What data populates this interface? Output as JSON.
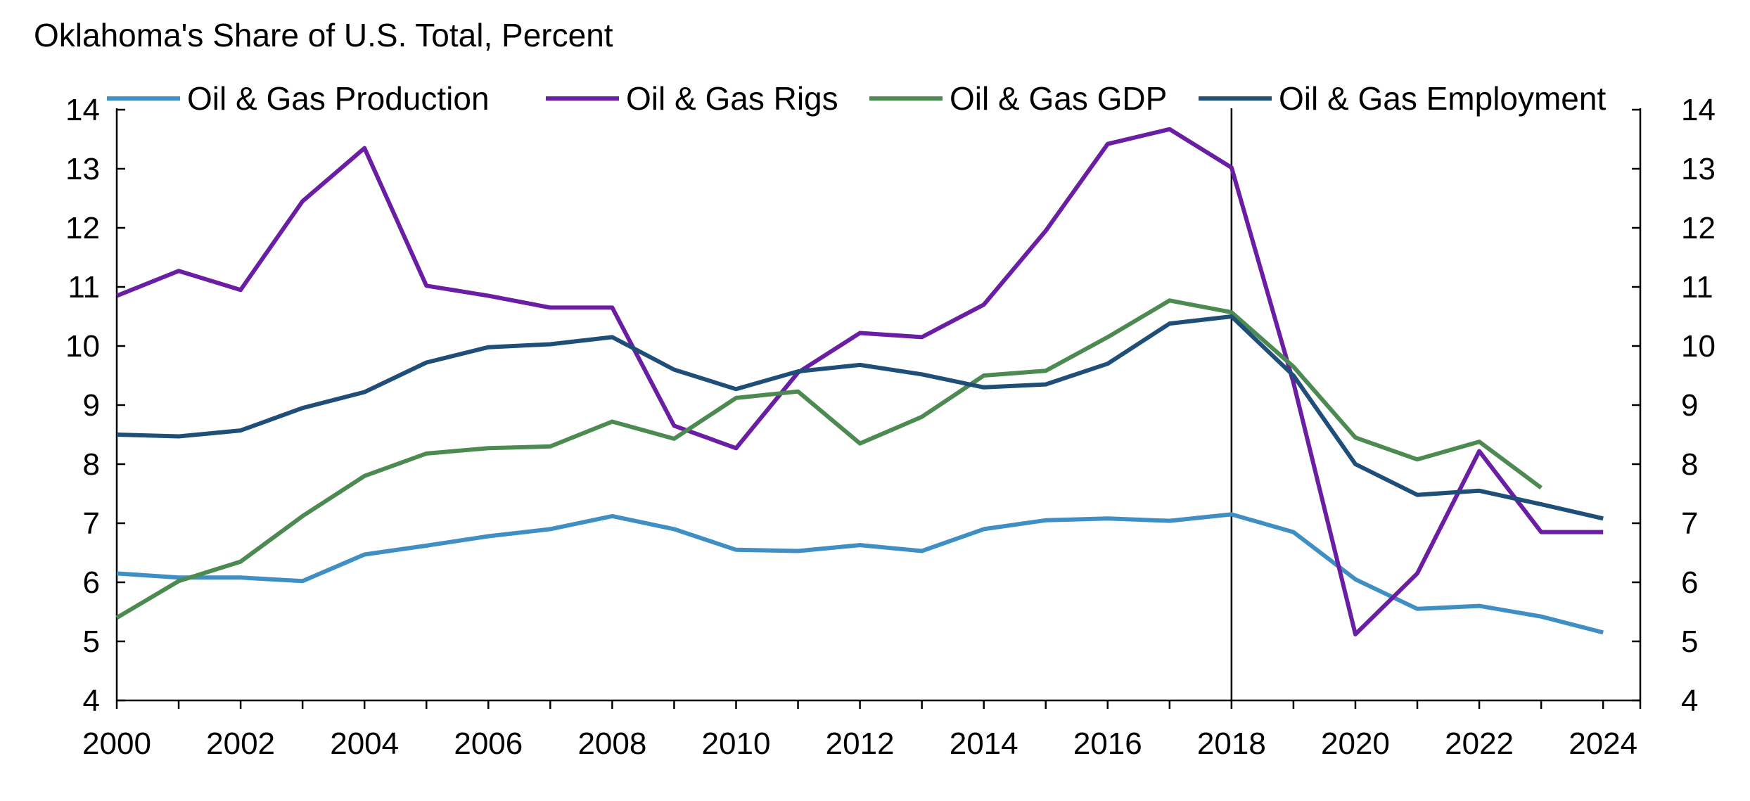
{
  "chart_data": {
    "type": "line",
    "title": "Oklahoma's Share of U.S. Total, Percent",
    "xlabel": "",
    "ylabel": "",
    "x": [
      2000,
      2001,
      2002,
      2003,
      2004,
      2005,
      2006,
      2007,
      2008,
      2009,
      2010,
      2011,
      2012,
      2013,
      2014,
      2015,
      2016,
      2017,
      2018,
      2019,
      2020,
      2021,
      2022,
      2023,
      2024
    ],
    "x_tick_labels": [
      "2000",
      "2002",
      "2004",
      "2006",
      "2008",
      "2010",
      "2012",
      "2014",
      "2016",
      "2018",
      "2020",
      "2022",
      "2024"
    ],
    "xlim": [
      2000,
      2024.6
    ],
    "ylim": [
      4,
      14
    ],
    "y_ticks": [
      4,
      5,
      6,
      7,
      8,
      9,
      10,
      11,
      12,
      13,
      14
    ],
    "y_tick_labels_left": [
      "4",
      "5",
      "6",
      "7",
      "8",
      "9",
      "10",
      "11",
      "12",
      "13",
      "14"
    ],
    "y_tick_labels_right": [
      "4",
      "5",
      "6",
      "7",
      "8",
      "9",
      "10",
      "11",
      "12",
      "13",
      "14"
    ],
    "grid": false,
    "legend_position": "top",
    "vertical_marker_x": 2018,
    "series": [
      {
        "name": "Oil & Gas Production",
        "color": "#3f8fc4",
        "values": [
          6.15,
          6.08,
          6.08,
          6.02,
          6.47,
          6.62,
          6.78,
          6.9,
          7.12,
          6.9,
          6.55,
          6.53,
          6.63,
          6.53,
          6.9,
          7.05,
          7.08,
          7.04,
          7.15,
          6.85,
          6.05,
          5.55,
          5.6,
          5.42,
          5.15
        ]
      },
      {
        "name": "Oil & Gas Rigs",
        "color": "#6a1ea3",
        "values": [
          10.85,
          11.27,
          10.95,
          12.45,
          13.35,
          11.02,
          10.85,
          10.65,
          10.65,
          8.65,
          8.27,
          9.55,
          10.22,
          10.15,
          10.7,
          11.95,
          13.42,
          13.67,
          13.02,
          9.38,
          5.12,
          6.15,
          8.22,
          6.85,
          6.85
        ]
      },
      {
        "name": "Oil & Gas GDP",
        "color": "#4c8a52",
        "values": [
          5.4,
          6.02,
          6.35,
          7.12,
          7.8,
          8.18,
          8.27,
          8.3,
          8.72,
          8.43,
          9.12,
          9.23,
          8.35,
          8.8,
          9.5,
          9.58,
          10.15,
          10.77,
          10.57,
          9.65,
          8.45,
          8.08,
          8.38,
          7.6,
          null
        ]
      },
      {
        "name": "Oil & Gas Employment",
        "color": "#1f4e79",
        "values": [
          8.5,
          8.47,
          8.57,
          8.95,
          9.22,
          9.72,
          9.98,
          10.03,
          10.15,
          9.6,
          9.27,
          9.57,
          9.68,
          9.52,
          9.3,
          9.35,
          9.7,
          10.38,
          10.5,
          9.5,
          8.0,
          7.48,
          7.55,
          7.32,
          7.08
        ]
      }
    ]
  }
}
